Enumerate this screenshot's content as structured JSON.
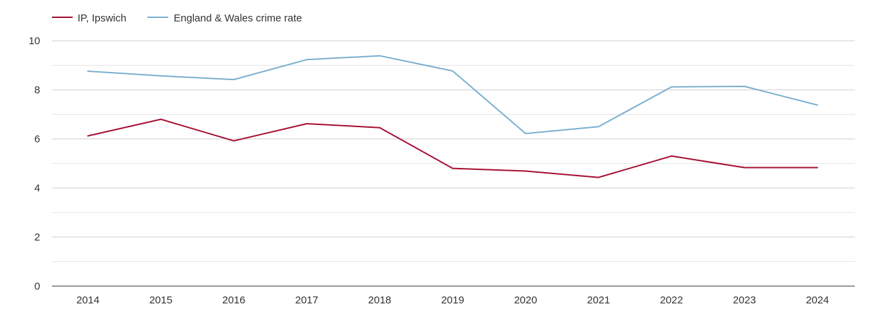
{
  "chart_data": {
    "type": "line",
    "title": "",
    "xlabel": "",
    "ylabel": "",
    "categories": [
      "2014",
      "2015",
      "2016",
      "2017",
      "2018",
      "2019",
      "2020",
      "2021",
      "2022",
      "2023",
      "2024"
    ],
    "ylim": [
      0,
      10
    ],
    "yticks": [
      "0",
      "2",
      "4",
      "6",
      "8",
      "10"
    ],
    "grid": true,
    "legend_position": "top-left",
    "series": [
      {
        "name": "IP, Ipswich",
        "color": "#a50f31",
        "values": [
          6.12,
          6.8,
          5.92,
          6.62,
          6.46,
          4.8,
          4.69,
          4.43,
          5.3,
          4.83,
          4.83
        ]
      },
      {
        "name": "England & Wales crime rate",
        "color": "#7bafd0",
        "values": [
          8.76,
          8.57,
          8.42,
          9.23,
          9.39,
          8.77,
          6.22,
          6.5,
          8.12,
          8.14,
          7.38
        ]
      }
    ]
  }
}
